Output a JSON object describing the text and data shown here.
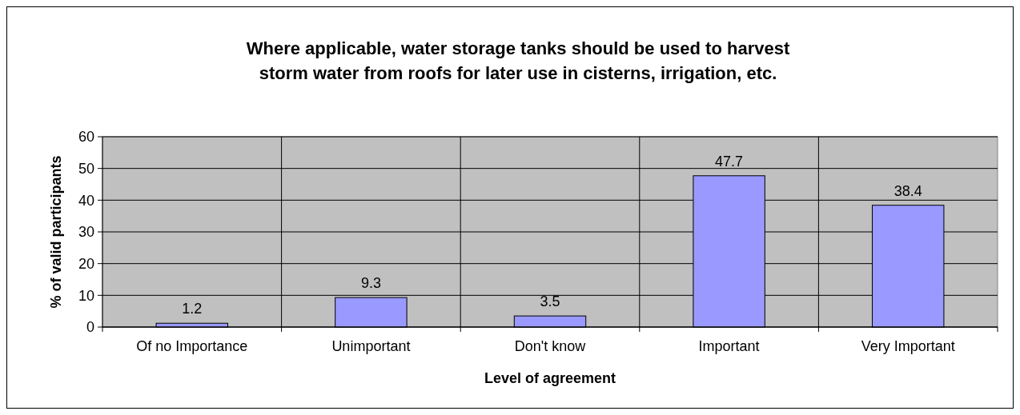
{
  "chart_data": {
    "type": "bar",
    "title": "Where applicable, water storage tanks should be used to harvest\nstorm water from roofs for later use in cisterns, irrigation, etc.",
    "xlabel": "Level of agreement",
    "ylabel": "% of valid participants",
    "categories": [
      "Of no Importance",
      "Unimportant",
      "Don't know",
      "Important",
      "Very Important"
    ],
    "values": [
      1.2,
      9.3,
      3.5,
      47.7,
      38.4
    ],
    "color": "#9999ff",
    "ylim": [
      0,
      60
    ],
    "yticks": [
      0,
      10,
      20,
      30,
      40,
      50,
      60
    ],
    "grid": true,
    "data_labels": true
  }
}
